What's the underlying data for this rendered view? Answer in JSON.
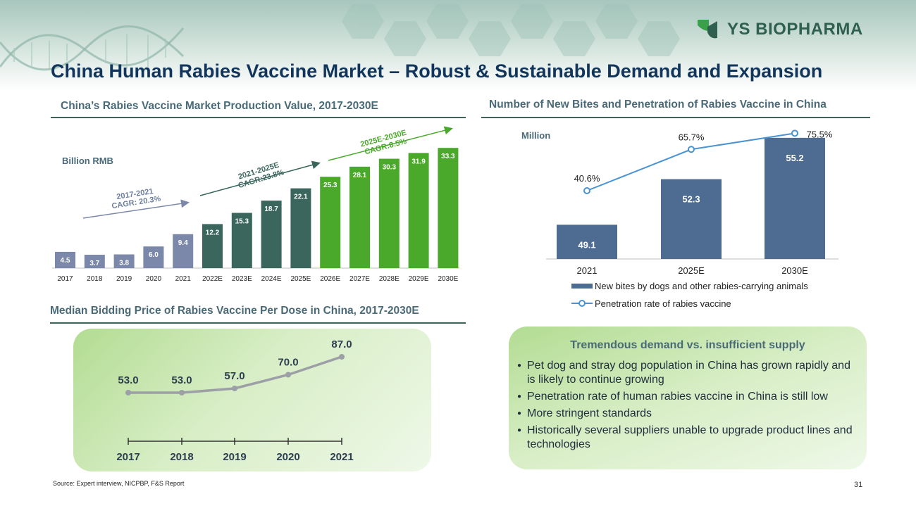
{
  "brand": {
    "name": "YS BIOPHARMA",
    "logo_color": "#3aa04a"
  },
  "title": "China Human Rabies Vaccine Market – Robust & Sustainable Demand and Expansion",
  "colors": {
    "title": "#12355c",
    "section": "#4a6a78",
    "gray_bar": "#7b88a9",
    "dark_green_bar": "#3a665d",
    "green_bar": "#4aa82b",
    "blue_bar": "#4e6b91",
    "line_blue": "#4a93d2",
    "price_line": "#9c9fa6"
  },
  "market_section": {
    "title": "China’s Rabies Vaccine Market Production Value, 2017-2030E",
    "unit": "Billion RMB"
  },
  "bites_section": {
    "title": "Number of New Bites and Penetration of Rabies Vaccine  in China",
    "unit": "Million"
  },
  "price_section": {
    "title": "Median Bidding Price of Rabies Vaccine Per Dose in China, 2017-2030E"
  },
  "supply": {
    "title": "Tremendous demand vs. insufficient supply",
    "items": [
      "Pet dog and stray dog population in China has grown rapidly and is likely to continue growing",
      "Penetration rate of human rabies vaccine in China is still low",
      "More stringent standards",
      "Historically several suppliers unable to upgrade product lines and technologies"
    ]
  },
  "source": "Source: Expert interview, NICPBP, F&S Report",
  "page_number": "31",
  "chart_data": [
    {
      "type": "bar",
      "title": "China’s Rabies Vaccine Market Production Value, 2017-2030E",
      "ylabel": "Billion RMB",
      "categories": [
        "2017",
        "2018",
        "2019",
        "2020",
        "2021",
        "2022E",
        "2023E",
        "2024E",
        "2025E",
        "2026E",
        "2027E",
        "2028E",
        "2029E",
        "2030E"
      ],
      "values": [
        4.5,
        3.7,
        3.8,
        6.0,
        9.4,
        12.2,
        15.3,
        18.7,
        22.1,
        25.3,
        28.1,
        30.3,
        31.9,
        33.3
      ],
      "value_labels": [
        "4.5",
        "3.7",
        "3.8",
        "6.0",
        "9.4",
        "12.2",
        "15.3",
        "18.7",
        "22.1",
        "25.3",
        "28.1",
        "30.3",
        "31.9",
        "33.3"
      ],
      "period_colors": [
        "gray",
        "gray",
        "gray",
        "gray",
        "gray",
        "dark_green",
        "dark_green",
        "dark_green",
        "dark_green",
        "green",
        "green",
        "green",
        "green",
        "green"
      ],
      "ylim": [
        0,
        34
      ],
      "annotations": [
        {
          "lines": [
            "2017-2021",
            "CAGR: 20.3%"
          ],
          "color": "#6d7e9e"
        },
        {
          "lines": [
            "2021-2025E",
            "CAGR:23.8%"
          ],
          "color": "#3a665d"
        },
        {
          "lines": [
            "2025E-2030E",
            "CAGR:8.5%"
          ],
          "color": "#4aa82b"
        }
      ]
    },
    {
      "type": "bar",
      "title": "Number of New Bites and Penetration of Rabies Vaccine  in China",
      "ylabel": "Million",
      "categories": [
        "2021",
        "2025E",
        "2030E"
      ],
      "series": [
        {
          "name": "New bites by dogs and other rabies-carrying animals",
          "type": "bar",
          "values": [
            49.1,
            52.3,
            55.2
          ],
          "labels": [
            "49.1",
            "52.3",
            "55.2"
          ]
        },
        {
          "name": "Penetration rate of rabies vaccine",
          "type": "line",
          "values": [
            40.6,
            65.7,
            75.5
          ],
          "labels": [
            "40.6%",
            "65.7%",
            "75.5%"
          ]
        }
      ],
      "legend": "bottom"
    },
    {
      "type": "line",
      "title": "Median Bidding Price of Rabies Vaccine Per Dose in China, 2017-2030E",
      "x": [
        "2017",
        "2018",
        "2019",
        "2020",
        "2021"
      ],
      "values": [
        53.0,
        53.0,
        57.0,
        70.0,
        87.0
      ],
      "labels": [
        "53.0",
        "53.0",
        "57.0",
        "70.0",
        "87.0"
      ]
    }
  ]
}
